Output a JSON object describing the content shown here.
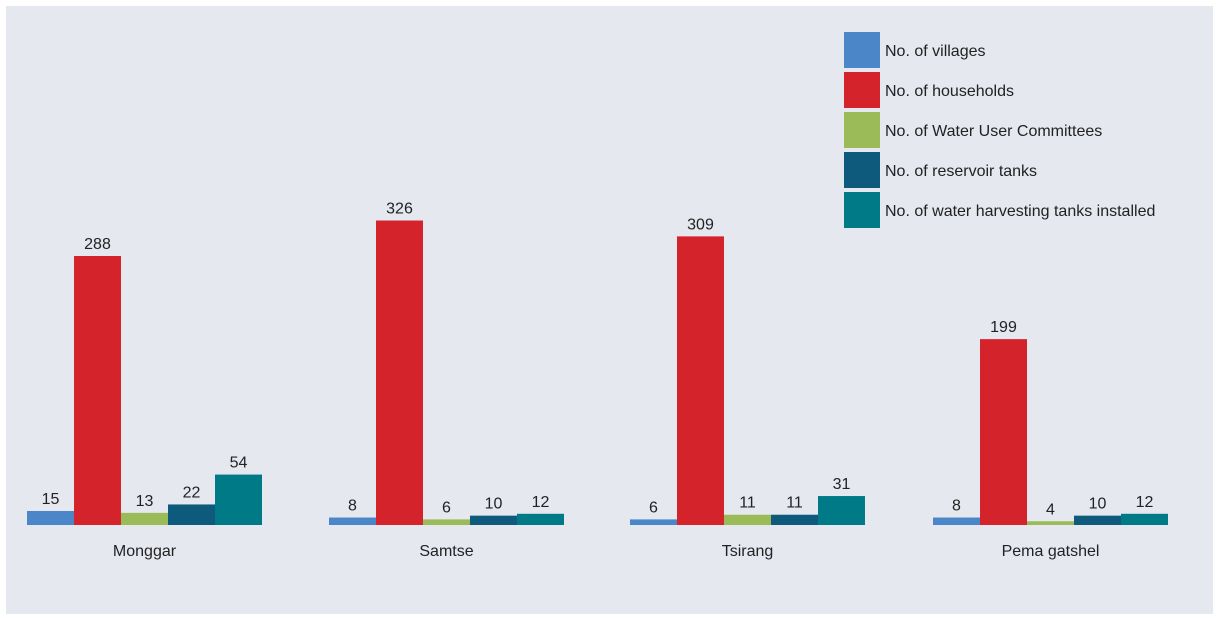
{
  "chart_data": {
    "type": "bar",
    "categories": [
      "Monggar",
      "Samtse",
      "Tsirang",
      "Pema gatshel"
    ],
    "series": [
      {
        "name": "No. of villages",
        "color": "#4a86c8",
        "values": [
          15,
          8,
          6,
          8
        ]
      },
      {
        "name": "No. of households",
        "color": "#d4232b",
        "values": [
          288,
          326,
          309,
          199
        ]
      },
      {
        "name": "No. of Water User Committees",
        "color": "#9bbb59",
        "values": [
          13,
          6,
          11,
          4
        ]
      },
      {
        "name": "No. of reservoir  tanks",
        "color": "#0d5a7d",
        "values": [
          22,
          10,
          11,
          10
        ]
      },
      {
        "name": "No. of water harvesting tanks installed",
        "color": "#007a87",
        "values": [
          54,
          12,
          31,
          12
        ]
      }
    ],
    "ylim": [
      0,
      340
    ],
    "grid": false,
    "legend": "top-right",
    "title": "",
    "xlabel": "",
    "ylabel": ""
  }
}
